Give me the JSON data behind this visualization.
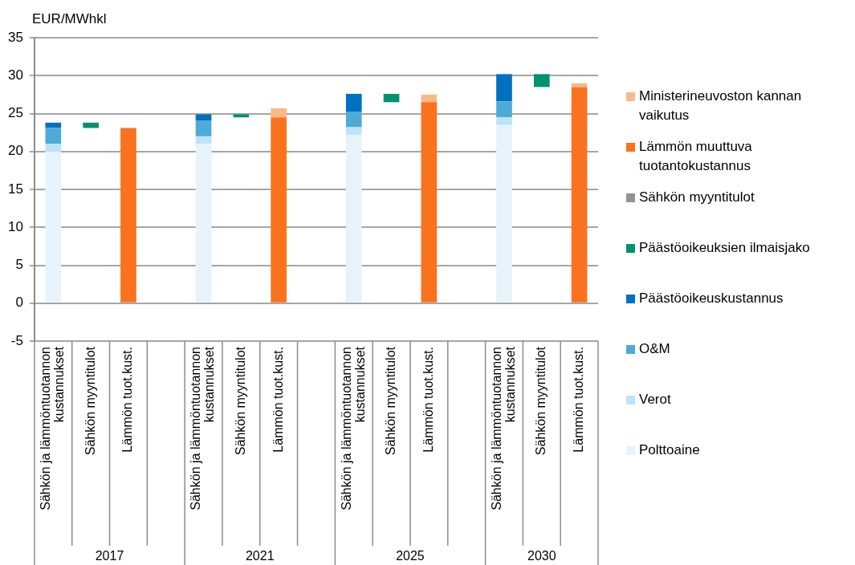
{
  "chart_data": {
    "type": "bar",
    "ylabel": "EUR/MWhkl",
    "categories": [
      "Sähkön ja lämmöntuotannon kustannukset",
      "Sähkön myyntitulot",
      "Lämmön tuot.kust.",
      null,
      "Sähkön ja lämmöntuotannon kustannukset",
      "Sähkön myyntitulot",
      "Lämmön tuot.kust.",
      null,
      "Sähkön ja lämmöntuotannon kustannukset",
      "Sähkön myyntitulot",
      "Lämmön tuot.kust.",
      null,
      "Sähkön ja lämmöntuotannon kustannukset",
      "Sähkön myyntitulot",
      "Lämmön tuot.kust."
    ],
    "annotations": [
      "2017",
      "2021",
      "2025",
      "2030"
    ],
    "stacked": true,
    "series": [
      {
        "name": "Polttoaine",
        "color": "#e6f3fb",
        "values": [
          20.0,
          null,
          null,
          null,
          21.0,
          null,
          null,
          null,
          22.2,
          null,
          null,
          null,
          23.5,
          null,
          null
        ]
      },
      {
        "name": "Verot",
        "color": "#bde3f7",
        "values": [
          1.0,
          null,
          null,
          null,
          1.0,
          null,
          null,
          null,
          1.0,
          null,
          null,
          null,
          1.0,
          null,
          null
        ]
      },
      {
        "name": "O&M",
        "color": "#4eabd6",
        "values": [
          2.1,
          null,
          null,
          null,
          2.1,
          null,
          null,
          null,
          2.0,
          null,
          null,
          null,
          2.1,
          null,
          null
        ]
      },
      {
        "name": "Päästöoikeuskustannus",
        "color": "#0070c0",
        "values": [
          0.7,
          null,
          null,
          null,
          0.8,
          null,
          null,
          null,
          2.4,
          null,
          null,
          null,
          3.6,
          null,
          null
        ]
      },
      {
        "name": "Päästöoikeuksien ilmaisjako",
        "color": "#009270",
        "values": [
          null,
          0.7,
          null,
          null,
          null,
          0.4,
          null,
          null,
          null,
          1.1,
          null,
          null,
          null,
          1.7,
          null
        ],
        "base": [
          null,
          23.1,
          null,
          null,
          null,
          24.5,
          null,
          null,
          null,
          26.5,
          null,
          null,
          null,
          28.5,
          null
        ]
      },
      {
        "name": "Sähkön myyntitulot",
        "color": "#939393",
        "values": [
          null,
          null,
          null,
          null,
          null,
          null,
          null,
          null,
          null,
          null,
          null,
          null,
          null,
          null,
          null
        ]
      },
      {
        "name": "Lämmön muuttuva tuotantokustannus",
        "color": "#fb721e",
        "values": [
          null,
          null,
          23.1,
          null,
          null,
          null,
          24.5,
          null,
          null,
          null,
          26.5,
          null,
          null,
          null,
          28.5
        ]
      },
      {
        "name": "Ministerineuvoston kannan vaikutus",
        "color": "#fbb98a",
        "values": [
          null,
          null,
          null,
          null,
          null,
          null,
          1.2,
          null,
          null,
          null,
          1.0,
          null,
          null,
          null,
          0.5
        ]
      }
    ],
    "ylim": [
      -5,
      35
    ],
    "yticks": [
      -5,
      0,
      5,
      10,
      15,
      20,
      25,
      30,
      35
    ],
    "grid": "y",
    "legend": "right"
  }
}
